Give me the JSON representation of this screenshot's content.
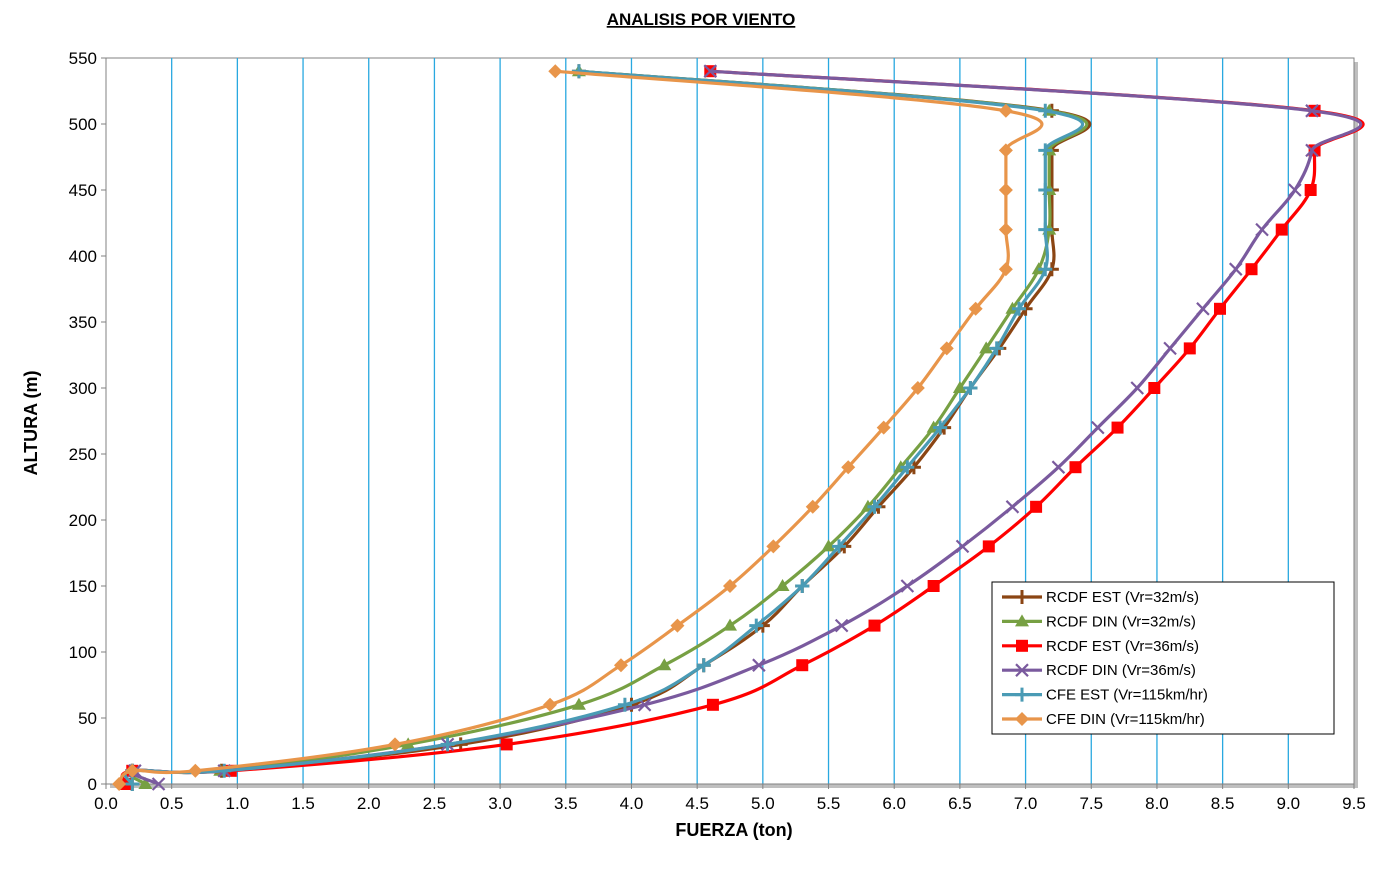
{
  "chart_data": {
    "type": "line",
    "title": "ANALISIS POR VIENTO",
    "xlabel": "FUERZA (ton)",
    "ylabel": "ALTURA (m)",
    "xlim": [
      0.0,
      9.5
    ],
    "ylim": [
      0,
      550
    ],
    "xticks": [
      "0.0",
      "0.5",
      "1.0",
      "1.5",
      "2.0",
      "2.5",
      "3.0",
      "3.5",
      "4.0",
      "4.5",
      "5.0",
      "5.5",
      "6.0",
      "6.5",
      "7.0",
      "7.5",
      "8.0",
      "8.5",
      "9.0",
      "9.5"
    ],
    "yticks": [
      "0",
      "50",
      "100",
      "150",
      "200",
      "250",
      "300",
      "350",
      "400",
      "450",
      "500",
      "550"
    ],
    "grid": "vertical",
    "legend_position": "bottom-right",
    "series": [
      {
        "name": "RCDF EST  (Vr=32m/s)",
        "color": "#8B4513",
        "marker": "plus",
        "points": [
          [
            0.2,
            0
          ],
          [
            0.2,
            10
          ],
          [
            0.88,
            10
          ],
          [
            2.7,
            30
          ],
          [
            4.0,
            60
          ],
          [
            4.55,
            90
          ],
          [
            5.0,
            120
          ],
          [
            5.3,
            150
          ],
          [
            5.62,
            180
          ],
          [
            5.88,
            210
          ],
          [
            6.15,
            240
          ],
          [
            6.38,
            270
          ],
          [
            6.58,
            300
          ],
          [
            6.8,
            330
          ],
          [
            7.0,
            360
          ],
          [
            7.2,
            390
          ],
          [
            7.2,
            420
          ],
          [
            7.2,
            450
          ],
          [
            7.2,
            480
          ],
          [
            7.2,
            510
          ],
          [
            3.6,
            540
          ]
        ]
      },
      {
        "name": "RCDF DIN  (Vr=32m/s)",
        "color": "#77A043",
        "marker": "triangle",
        "points": [
          [
            0.3,
            0
          ],
          [
            0.2,
            10
          ],
          [
            0.87,
            10
          ],
          [
            2.3,
            30
          ],
          [
            3.6,
            60
          ],
          [
            4.25,
            90
          ],
          [
            4.75,
            120
          ],
          [
            5.15,
            150
          ],
          [
            5.5,
            180
          ],
          [
            5.8,
            210
          ],
          [
            6.05,
            240
          ],
          [
            6.3,
            270
          ],
          [
            6.5,
            300
          ],
          [
            6.7,
            330
          ],
          [
            6.9,
            360
          ],
          [
            7.1,
            390
          ],
          [
            7.18,
            420
          ],
          [
            7.18,
            450
          ],
          [
            7.18,
            480
          ],
          [
            7.18,
            510
          ],
          [
            3.6,
            540
          ]
        ]
      },
      {
        "name": "RCDF EST  (Vr=36m/s)",
        "color": "#FF0000",
        "marker": "square",
        "points": [
          [
            0.15,
            0
          ],
          [
            0.2,
            10
          ],
          [
            0.95,
            10
          ],
          [
            3.05,
            30
          ],
          [
            4.62,
            60
          ],
          [
            5.3,
            90
          ],
          [
            5.85,
            120
          ],
          [
            6.3,
            150
          ],
          [
            6.72,
            180
          ],
          [
            7.08,
            210
          ],
          [
            7.38,
            240
          ],
          [
            7.7,
            270
          ],
          [
            7.98,
            300
          ],
          [
            8.25,
            330
          ],
          [
            8.48,
            360
          ],
          [
            8.72,
            390
          ],
          [
            8.95,
            420
          ],
          [
            9.17,
            450
          ],
          [
            9.2,
            480
          ],
          [
            9.2,
            510
          ],
          [
            4.6,
            540
          ]
        ]
      },
      {
        "name": "RCDF DIN  (Vr=36m/s)",
        "color": "#7A5A9E",
        "marker": "x",
        "points": [
          [
            0.4,
            0
          ],
          [
            0.22,
            10
          ],
          [
            0.9,
            10
          ],
          [
            2.6,
            30
          ],
          [
            4.1,
            60
          ],
          [
            4.97,
            90
          ],
          [
            5.6,
            120
          ],
          [
            6.1,
            150
          ],
          [
            6.52,
            180
          ],
          [
            6.9,
            210
          ],
          [
            7.25,
            240
          ],
          [
            7.55,
            270
          ],
          [
            7.85,
            300
          ],
          [
            8.1,
            330
          ],
          [
            8.35,
            360
          ],
          [
            8.6,
            390
          ],
          [
            8.8,
            420
          ],
          [
            9.05,
            450
          ],
          [
            9.18,
            480
          ],
          [
            9.18,
            510
          ],
          [
            4.6,
            540
          ]
        ]
      },
      {
        "name": "CFE EST  (Vr=115km/hr)",
        "color": "#4A9BB5",
        "marker": "plus",
        "points": [
          [
            0.2,
            0
          ],
          [
            0.2,
            10
          ],
          [
            0.9,
            10
          ],
          [
            2.6,
            30
          ],
          [
            3.95,
            60
          ],
          [
            4.55,
            90
          ],
          [
            4.95,
            120
          ],
          [
            5.3,
            150
          ],
          [
            5.58,
            180
          ],
          [
            5.85,
            210
          ],
          [
            6.1,
            240
          ],
          [
            6.35,
            270
          ],
          [
            6.58,
            300
          ],
          [
            6.78,
            330
          ],
          [
            6.95,
            360
          ],
          [
            7.15,
            390
          ],
          [
            7.15,
            420
          ],
          [
            7.15,
            450
          ],
          [
            7.15,
            480
          ],
          [
            7.15,
            510
          ],
          [
            3.6,
            540
          ]
        ]
      },
      {
        "name": "CFE DIN  (Vr=115km/hr)",
        "color": "#E8954A",
        "marker": "diamond",
        "points": [
          [
            0.1,
            0
          ],
          [
            0.2,
            10
          ],
          [
            0.68,
            10
          ],
          [
            2.2,
            30
          ],
          [
            3.38,
            60
          ],
          [
            3.92,
            90
          ],
          [
            4.35,
            120
          ],
          [
            4.75,
            150
          ],
          [
            5.08,
            180
          ],
          [
            5.38,
            210
          ],
          [
            5.65,
            240
          ],
          [
            5.92,
            270
          ],
          [
            6.18,
            300
          ],
          [
            6.4,
            330
          ],
          [
            6.62,
            360
          ],
          [
            6.85,
            390
          ],
          [
            6.85,
            420
          ],
          [
            6.85,
            450
          ],
          [
            6.85,
            480
          ],
          [
            6.85,
            510
          ],
          [
            3.42,
            540
          ]
        ]
      }
    ]
  }
}
